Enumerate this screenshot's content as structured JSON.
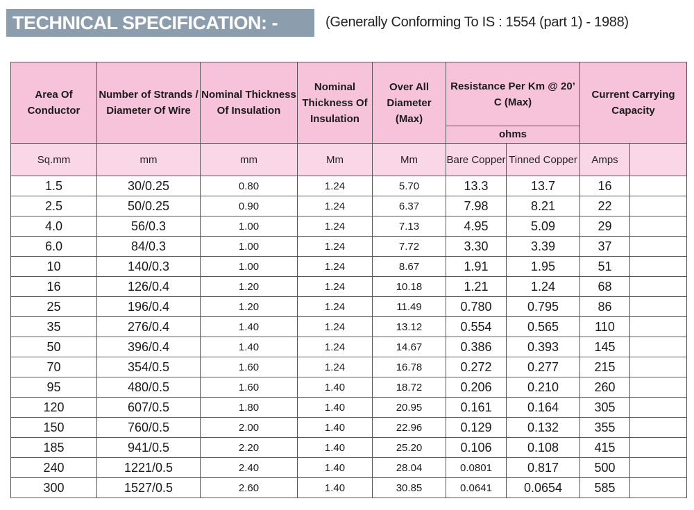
{
  "header": {
    "title": "TECHNICAL SPECIFICATION: -",
    "subtitle": "(Generally Conforming To IS : 1554 (part 1) - 1988)"
  },
  "table": {
    "columns": {
      "area": "Area Of Conductor",
      "strands": "Number of Strands / Diameter Of Wire",
      "nominal1": "Nominal Thickness Of Insulation",
      "nominal2": "Nominal Thickness Of Insulation",
      "diameter": "Over All Diameter (Max)",
      "resistance": "Resistance Per Km @ 20’ C (Max)",
      "ohms": "ohms",
      "current": "Current Carrying Capacity"
    },
    "units": {
      "area": "Sq.mm",
      "strands": "mm",
      "nominal1": "mm",
      "nominal2": "Mm",
      "diameter": "Mm",
      "bare": "Bare Copper",
      "tinned": "Tinned Copper",
      "amps": "Amps",
      "blank": ""
    },
    "rows": [
      {
        "area": "1.5",
        "strands": "30/0.25",
        "t1": "0.80",
        "t2": "1.24",
        "dia": "5.70",
        "bare": "13.3",
        "tinned": "13.7",
        "amps": "16",
        "extra": ""
      },
      {
        "area": "2.5",
        "strands": "50/0.25",
        "t1": "0.90",
        "t2": "1.24",
        "dia": "6.37",
        "bare": "7.98",
        "tinned": "8.21",
        "amps": "22",
        "extra": ""
      },
      {
        "area": "4.0",
        "strands": "56/0.3",
        "t1": "1.00",
        "t2": "1.24",
        "dia": "7.13",
        "bare": "4.95",
        "tinned": "5.09",
        "amps": "29",
        "extra": ""
      },
      {
        "area": "6.0",
        "strands": "84/0.3",
        "t1": "1.00",
        "t2": "1.24",
        "dia": "7.72",
        "bare": "3.30",
        "tinned": "3.39",
        "amps": "37",
        "extra": ""
      },
      {
        "area": "10",
        "strands": "140/0.3",
        "t1": "1.00",
        "t2": "1.24",
        "dia": "8.67",
        "bare": "1.91",
        "tinned": "1.95",
        "amps": "51",
        "extra": ""
      },
      {
        "area": "16",
        "strands": "126/0.4",
        "t1": "1.20",
        "t2": "1.24",
        "dia": "10.18",
        "bare": "1.21",
        "tinned": "1.24",
        "amps": "68",
        "extra": ""
      },
      {
        "area": "25",
        "strands": "196/0.4",
        "t1": "1.20",
        "t2": "1.24",
        "dia": "11.49",
        "bare": "0.780",
        "tinned": "0.795",
        "amps": "86",
        "extra": ""
      },
      {
        "area": "35",
        "strands": "276/0.4",
        "t1": "1.40",
        "t2": "1.24",
        "dia": "13.12",
        "bare": "0.554",
        "tinned": "0.565",
        "amps": "110",
        "extra": ""
      },
      {
        "area": "50",
        "strands": "396/0.4",
        "t1": "1.40",
        "t2": "1.24",
        "dia": "14.67",
        "bare": "0.386",
        "tinned": "0.393",
        "amps": "145",
        "extra": ""
      },
      {
        "area": "70",
        "strands": "354/0.5",
        "t1": "1.60",
        "t2": "1.24",
        "dia": "16.78",
        "bare": "0.272",
        "tinned": "0.277",
        "amps": "215",
        "extra": ""
      },
      {
        "area": "95",
        "strands": "480/0.5",
        "t1": "1.60",
        "t2": "1.40",
        "dia": "18.72",
        "bare": "0.206",
        "tinned": "0.210",
        "amps": "260",
        "extra": ""
      },
      {
        "area": "120",
        "strands": "607/0.5",
        "t1": "1.80",
        "t2": "1.40",
        "dia": "20.95",
        "bare": "0.161",
        "tinned": "0.164",
        "amps": "305",
        "extra": ""
      },
      {
        "area": "150",
        "strands": "760/0.5",
        "t1": "2.00",
        "t2": "1.40",
        "dia": "22.96",
        "bare": "0.129",
        "tinned": "0.132",
        "amps": "355",
        "extra": ""
      },
      {
        "area": "185",
        "strands": "941/0.5",
        "t1": "2.20",
        "t2": "1.40",
        "dia": "25.20",
        "bare": "0.106",
        "tinned": "0.108",
        "amps": "415",
        "extra": ""
      },
      {
        "area": "240",
        "strands": "1221/0.5",
        "t1": "2.40",
        "t2": "1.40",
        "dia": "28.04",
        "bare": "0.0801",
        "tinned": "0.817",
        "amps": "500",
        "extra": ""
      },
      {
        "area": "300",
        "strands": "1527/0.5",
        "t1": "2.60",
        "t2": "1.40",
        "dia": "30.85",
        "bare": "0.0641",
        "tinned": "0.0654",
        "amps": "585",
        "extra": ""
      }
    ]
  },
  "colors": {
    "title_bg": "#8c9dad",
    "header_bg": "#f6c3db",
    "units_bg": "#f9d7e7"
  }
}
